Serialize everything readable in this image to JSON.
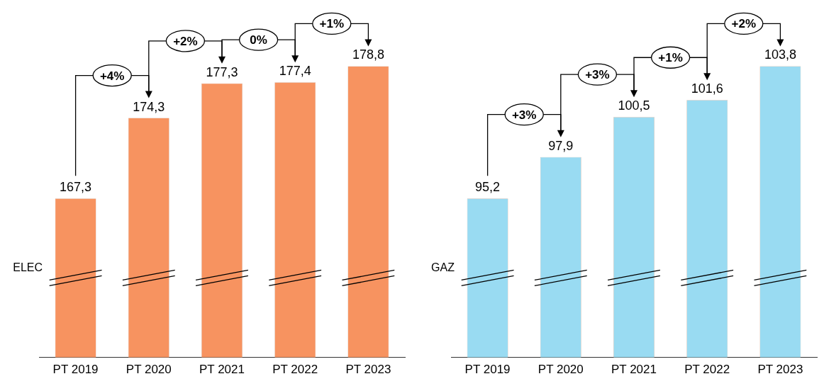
{
  "chart_data": [
    {
      "type": "bar",
      "ylabel": "ELEC",
      "categories": [
        "PT 2019",
        "PT 2020",
        "PT 2021",
        "PT 2022",
        "PT 2023"
      ],
      "values": [
        167.3,
        174.3,
        177.3,
        177.4,
        178.8
      ],
      "value_labels": [
        "167,3",
        "174,3",
        "177,3",
        "177,4",
        "178,8"
      ],
      "color": "#f79360",
      "grid": false,
      "legend": false,
      "annotations": [
        "+4%",
        "+2%",
        "0%",
        "+1%"
      ]
    },
    {
      "type": "bar",
      "ylabel": "GAZ",
      "categories": [
        "PT 2019",
        "PT 2020",
        "PT 2021",
        "PT 2022",
        "PT 2023"
      ],
      "values": [
        95.2,
        97.9,
        100.5,
        101.6,
        103.8
      ],
      "value_labels": [
        "95,2",
        "97,9",
        "100,5",
        "101,6",
        "103,8"
      ],
      "color": "#99dbf2",
      "grid": false,
      "legend": false,
      "annotations": [
        "+3%",
        "+3%",
        "+1%",
        "+2%"
      ]
    }
  ]
}
